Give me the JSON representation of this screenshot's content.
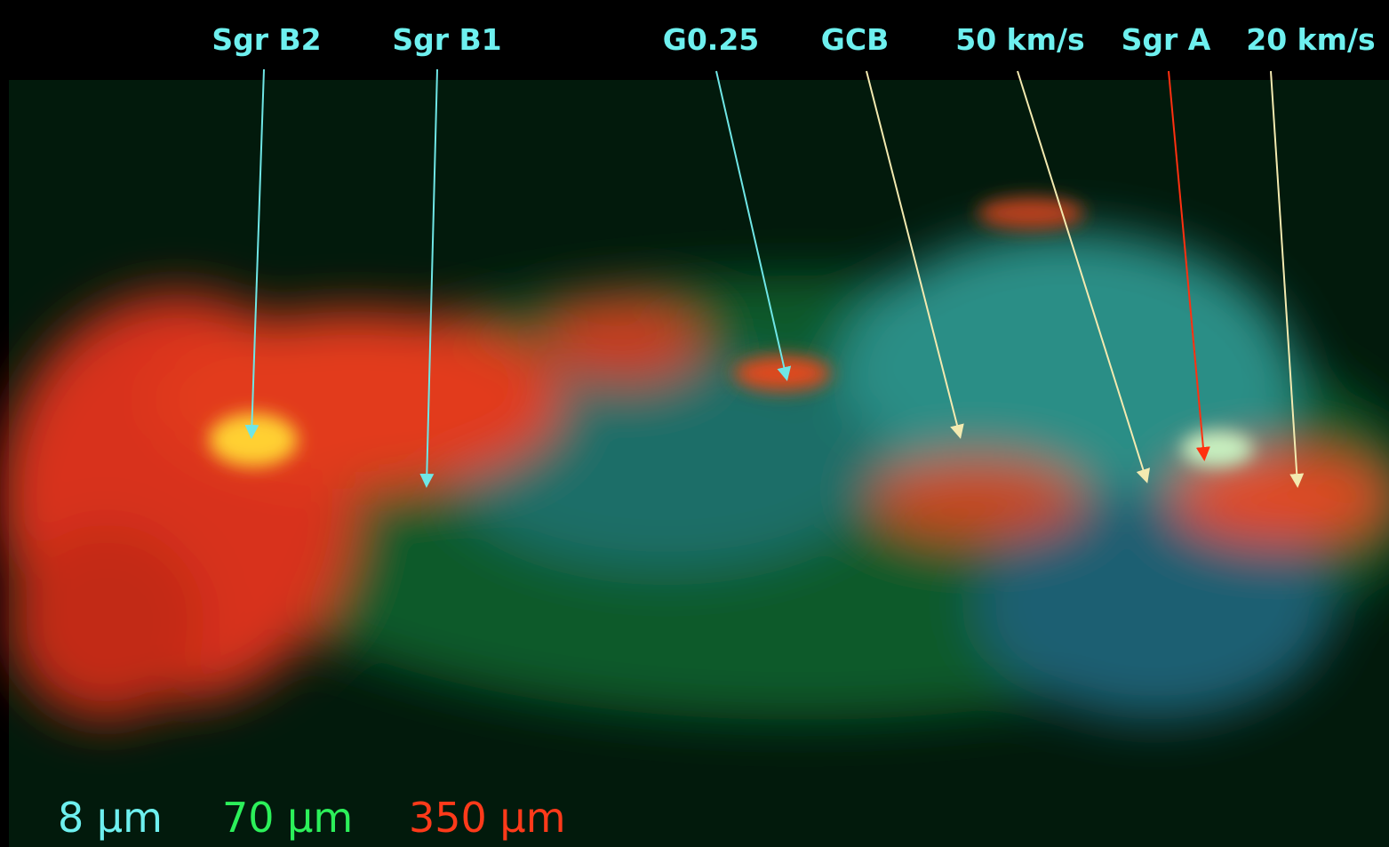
{
  "labels": [
    "Sgr B2",
    "Sgr B1",
    "G0.25",
    "GCB",
    "50 km/s",
    "Sgr A",
    "20 km/s"
  ],
  "legend": [
    "8 μm",
    "70 μm",
    "350 μm"
  ]
}
